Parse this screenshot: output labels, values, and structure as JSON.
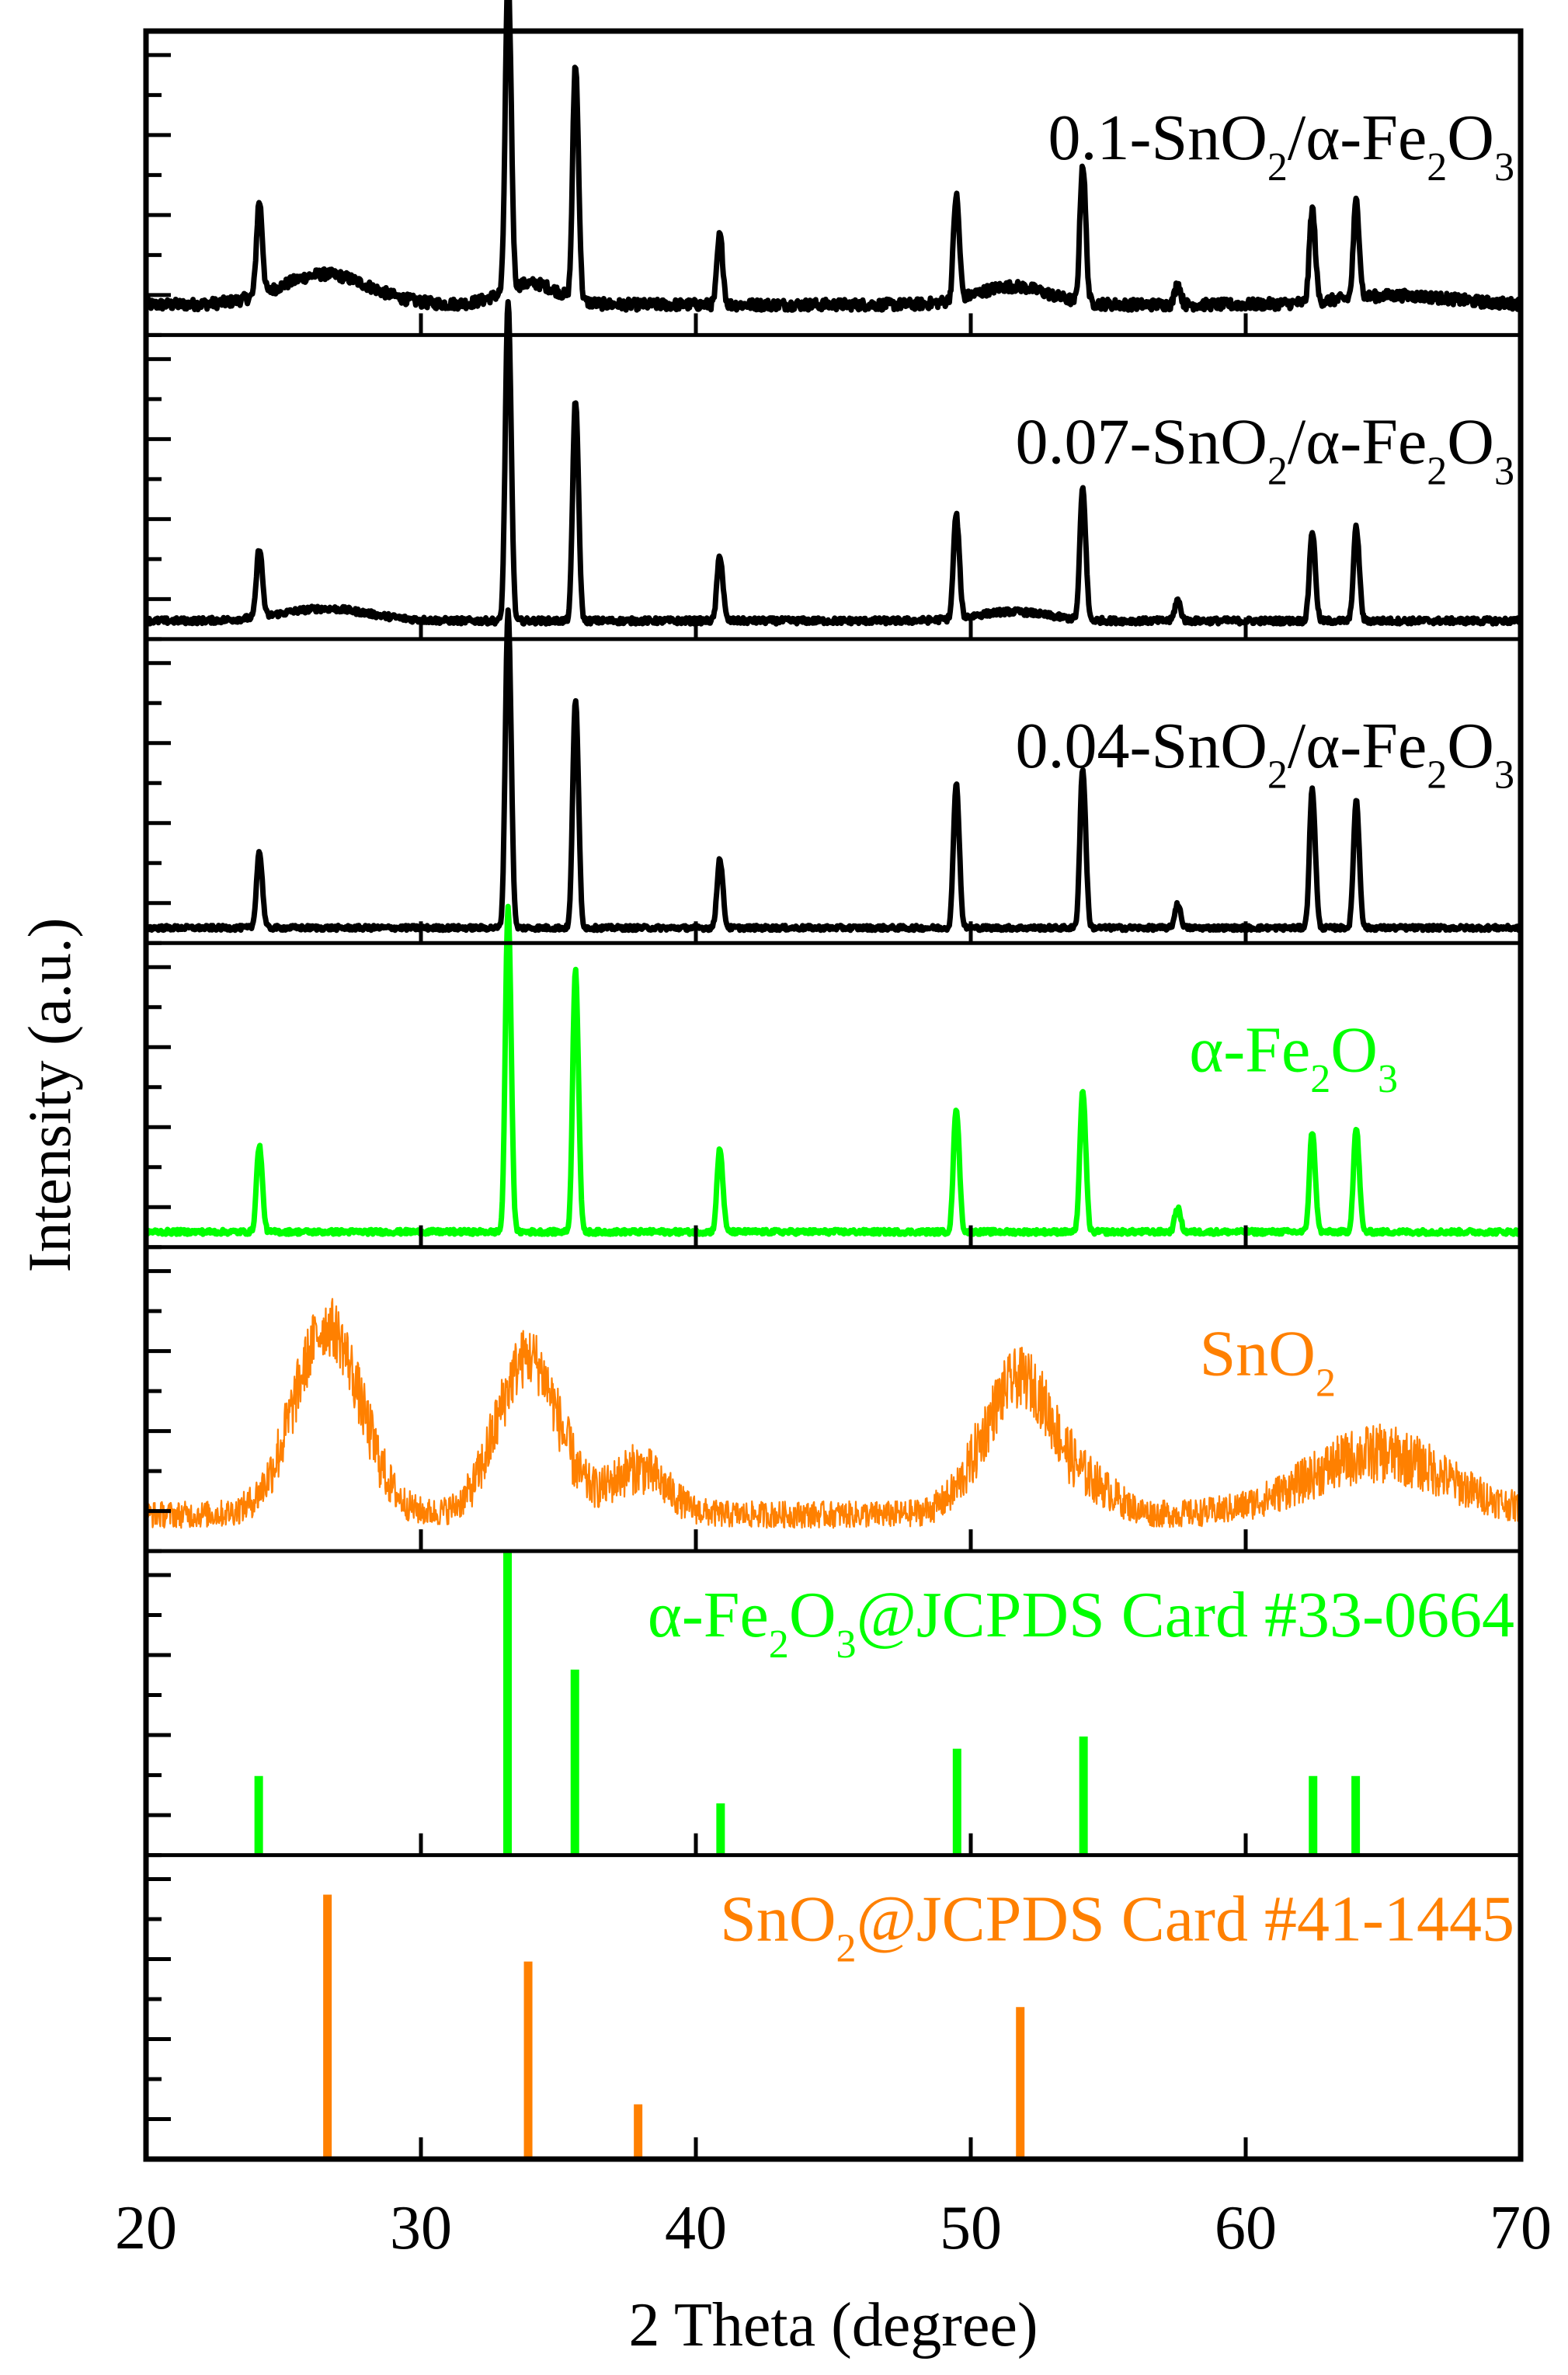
{
  "chart_data": {
    "type": "line",
    "title": "",
    "xlabel": "2 Theta (degree)",
    "ylabel": "Intensity (a.u.)",
    "xlim": [
      20,
      70
    ],
    "x_ticks": [
      20,
      30,
      40,
      50,
      60,
      70
    ],
    "x_tick_labels": [
      "20",
      "30",
      "40",
      "50",
      "60",
      "70"
    ],
    "grid": false,
    "legend": "inline panel labels (top-right of each panel)",
    "layout": "7 vertically stacked panels sharing x axis, y axis unlabeled (arbitrary units)",
    "colors": {
      "black": "#000000",
      "green": "#00FF00",
      "orange": "#FF8000"
    },
    "panels": [
      {
        "label": "0.1-SnO2/α-Fe2O3",
        "label_parts": [
          "0.1-SnO",
          "2",
          "/α-Fe",
          "2",
          "O",
          "3"
        ],
        "color": "#000000",
        "kind": "pattern",
        "baseline": 0.1,
        "noise": 0.018,
        "humps": [
          [
            26.5,
            0.1,
            1.6
          ],
          [
            34.0,
            0.07,
            1.0
          ],
          [
            51.5,
            0.06,
            1.3
          ],
          [
            65.5,
            0.03,
            2.0
          ]
        ],
        "peaks": [
          [
            24.1,
            0.27
          ],
          [
            33.15,
            0.92
          ],
          [
            35.6,
            0.68
          ],
          [
            40.85,
            0.2
          ],
          [
            49.45,
            0.3
          ],
          [
            54.05,
            0.4
          ],
          [
            57.5,
            0.06
          ],
          [
            62.4,
            0.27
          ],
          [
            64.0,
            0.28
          ]
        ]
      },
      {
        "label": "0.07-SnO2/α-Fe2O3",
        "label_parts": [
          "0.07-SnO",
          "2",
          "/α-Fe",
          "2",
          "O",
          "3"
        ],
        "color": "#000000",
        "kind": "pattern",
        "baseline": 0.06,
        "noise": 0.01,
        "humps": [
          [
            26.5,
            0.04,
            1.6
          ],
          [
            51.5,
            0.03,
            1.3
          ]
        ],
        "peaks": [
          [
            24.1,
            0.2
          ],
          [
            33.15,
            0.92
          ],
          [
            35.6,
            0.64
          ],
          [
            40.85,
            0.19
          ],
          [
            49.45,
            0.3
          ],
          [
            54.05,
            0.38
          ],
          [
            57.5,
            0.06
          ],
          [
            62.4,
            0.26
          ],
          [
            64.0,
            0.27
          ]
        ]
      },
      {
        "label": "0.04-SnO2/α-Fe2O3",
        "label_parts": [
          "0.04-SnO",
          "2",
          "/α-Fe",
          "2",
          "O",
          "3"
        ],
        "color": "#000000",
        "kind": "pattern",
        "baseline": 0.05,
        "noise": 0.008,
        "humps": [],
        "peaks": [
          [
            24.1,
            0.22
          ],
          [
            33.15,
            0.92
          ],
          [
            35.6,
            0.66
          ],
          [
            40.85,
            0.2
          ],
          [
            49.45,
            0.42
          ],
          [
            54.05,
            0.46
          ],
          [
            57.5,
            0.07
          ],
          [
            62.4,
            0.4
          ],
          [
            64.0,
            0.37
          ]
        ]
      },
      {
        "label": "α-Fe2O3",
        "label_parts": [
          "α-Fe",
          "2",
          "O",
          "3"
        ],
        "color": "#00FF00",
        "kind": "pattern",
        "baseline": 0.05,
        "noise": 0.008,
        "humps": [],
        "peaks": [
          [
            24.1,
            0.25
          ],
          [
            33.15,
            0.94
          ],
          [
            35.6,
            0.76
          ],
          [
            40.85,
            0.24
          ],
          [
            49.45,
            0.36
          ],
          [
            54.05,
            0.41
          ],
          [
            57.5,
            0.07
          ],
          [
            62.4,
            0.29
          ],
          [
            64.0,
            0.3
          ]
        ]
      },
      {
        "label": "SnO2",
        "label_parts": [
          "SnO",
          "2"
        ],
        "color": "#FF8000",
        "kind": "pattern",
        "baseline": 0.12,
        "noise": 0.05,
        "thin": true,
        "humps": [
          [
            26.6,
            0.62,
            1.2
          ],
          [
            33.9,
            0.52,
            1.1
          ],
          [
            37.9,
            0.15,
            1.0
          ],
          [
            51.8,
            0.45,
            1.3
          ],
          [
            54.7,
            0.06,
            0.8
          ],
          [
            64.8,
            0.2,
            2.5
          ]
        ],
        "peaks": []
      },
      {
        "label": "α-Fe2O3@JCPDS Card #33-0664",
        "label_parts": [
          "α-Fe",
          "2",
          "O",
          "3",
          "@JCPDS Card #33-0664"
        ],
        "color": "#00FF00",
        "kind": "sticks",
        "sticks": [
          [
            24.1,
            0.26
          ],
          [
            33.15,
            1.0
          ],
          [
            35.6,
            0.61
          ],
          [
            40.9,
            0.17
          ],
          [
            49.5,
            0.35
          ],
          [
            54.1,
            0.39
          ],
          [
            62.45,
            0.26
          ],
          [
            64.0,
            0.26
          ]
        ]
      },
      {
        "label": "SnO2@JCPDS Card #41-1445",
        "label_parts": [
          "SnO",
          "2",
          "@JCPDS Card #41-1445"
        ],
        "color": "#FF8000",
        "kind": "sticks",
        "sticks": [
          [
            26.6,
            0.87
          ],
          [
            33.9,
            0.65
          ],
          [
            37.9,
            0.18
          ],
          [
            51.8,
            0.5
          ]
        ]
      }
    ]
  }
}
